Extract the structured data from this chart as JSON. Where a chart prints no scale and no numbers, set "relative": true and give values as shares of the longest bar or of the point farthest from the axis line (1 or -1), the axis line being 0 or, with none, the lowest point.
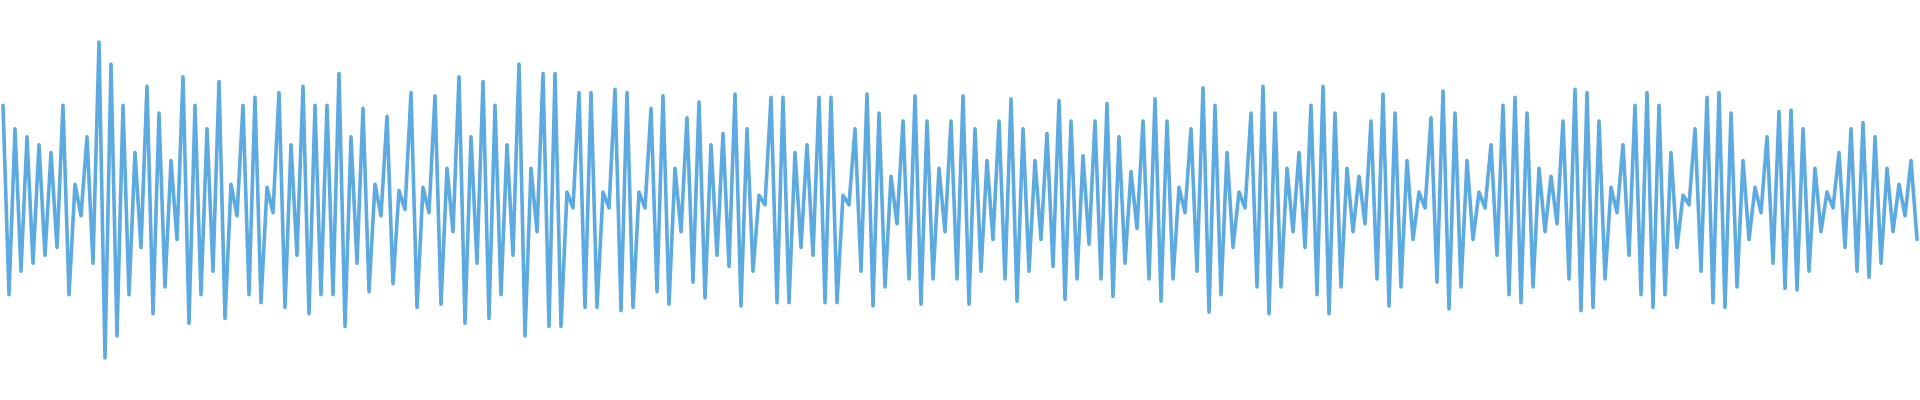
{
  "chart_data": {
    "type": "line",
    "relative": true,
    "categories": [
      null,
      null,
      null,
      null,
      null,
      null,
      null,
      null,
      null,
      null,
      null,
      null,
      null,
      null,
      null,
      null,
      null,
      null,
      null,
      null,
      null,
      null,
      null,
      null,
      null,
      null,
      null,
      null,
      null,
      null,
      null,
      null,
      null,
      null,
      null,
      null,
      null,
      null,
      null,
      null,
      null,
      null,
      null,
      null,
      null,
      null,
      null,
      null,
      null,
      null,
      null,
      null,
      null,
      null,
      null,
      null,
      null,
      null,
      null,
      null,
      null,
      null,
      null,
      null,
      null,
      null,
      null,
      null,
      null,
      null,
      null,
      null,
      null,
      null,
      null,
      null,
      null,
      null,
      null,
      null,
      null,
      null,
      null,
      null,
      null,
      null,
      null,
      null,
      null,
      null,
      null,
      null,
      null,
      null,
      null,
      null,
      null,
      null,
      null,
      null,
      null,
      null,
      null,
      null,
      null,
      null,
      null,
      null,
      null,
      null,
      null,
      null,
      null,
      null,
      null,
      null,
      null,
      null,
      null,
      null,
      null,
      null,
      null,
      null,
      null,
      null,
      null,
      null,
      null,
      null,
      null,
      null,
      null,
      null,
      null,
      null,
      null,
      null,
      null,
      null,
      null,
      null,
      null,
      null,
      null,
      null,
      null,
      null,
      null,
      null,
      null,
      null,
      null,
      null,
      null,
      null,
      null,
      null,
      null,
      null,
      null,
      null,
      null,
      null,
      null,
      null,
      null,
      null,
      null,
      null,
      null,
      null,
      null,
      null,
      null,
      null,
      null,
      null,
      null,
      null,
      null,
      null,
      null,
      null,
      null,
      null,
      null,
      null,
      null,
      null,
      null,
      null,
      null,
      null,
      null,
      null,
      null,
      null,
      null,
      null,
      null,
      null,
      null,
      null,
      null,
      null,
      null,
      null,
      null,
      null,
      null,
      null,
      null,
      null,
      null,
      null,
      null,
      null,
      null,
      null,
      null,
      null,
      null,
      null,
      null,
      null,
      null,
      null,
      null,
      null,
      null,
      null,
      null,
      null,
      null,
      null,
      null,
      null,
      null,
      null,
      null,
      null,
      null,
      null,
      null,
      null,
      null,
      null,
      null,
      null,
      null,
      null,
      null,
      null,
      null,
      null,
      null,
      null,
      null,
      null,
      null,
      null,
      null,
      null,
      null,
      null,
      null,
      null,
      null,
      null,
      null,
      null,
      null,
      null,
      null,
      null,
      null,
      null,
      null,
      null,
      null,
      null,
      null,
      null,
      null,
      null,
      null,
      null,
      null,
      null,
      null,
      null,
      null,
      null,
      null,
      null,
      null,
      null,
      null,
      null,
      null,
      null,
      null,
      null,
      null,
      null,
      null,
      null,
      null,
      null,
      null,
      null,
      null,
      null,
      null,
      null,
      null,
      null,
      null,
      null
    ],
    "series": [
      {
        "color": "#5daae0",
        "values": [
          0.8,
          0.2,
          0.725,
          0.275,
          0.7,
          0.3,
          0.675,
          0.325,
          0.65,
          0.35,
          0.8,
          0.2,
          0.55,
          0.45,
          0.7,
          0.3,
          1,
          0,
          0.93,
          0.07,
          0.8,
          0.2,
          0.65,
          0.35,
          0.86,
          0.14,
          0.775,
          0.225,
          0.625,
          0.375,
          0.89,
          0.11,
          0.8,
          0.2,
          0.725,
          0.275,
          0.875,
          0.125,
          0.55,
          0.45,
          0.8,
          0.2,
          0.825,
          0.175,
          0.54,
          0.46,
          0.84,
          0.16,
          0.675,
          0.325,
          0.86,
          0.14,
          0.8,
          0.2,
          0.8,
          0.2,
          0.9,
          0.1,
          0.7,
          0.3,
          0.79,
          0.21,
          0.55,
          0.45,
          0.765,
          0.235,
          0.53,
          0.47,
          0.84,
          0.16,
          0.54,
          0.46,
          0.83,
          0.17,
          0.6,
          0.4,
          0.89,
          0.11,
          0.7,
          0.3,
          0.875,
          0.125,
          0.8,
          0.2,
          0.675,
          0.325,
          0.93,
          0.07,
          0.6,
          0.4,
          0.9,
          0.1,
          0.9,
          0.1,
          0.525,
          0.475,
          0.84,
          0.16,
          0.84,
          0.16,
          0.525,
          0.475,
          0.85,
          0.15,
          0.84,
          0.16,
          0.525,
          0.475,
          0.79,
          0.21,
          0.83,
          0.17,
          0.6,
          0.4,
          0.76,
          0.24,
          0.81,
          0.19,
          0.675,
          0.325,
          0.71,
          0.29,
          0.835,
          0.165,
          0.725,
          0.275,
          0.515,
          0.485,
          0.825,
          0.175,
          0.825,
          0.175,
          0.65,
          0.35,
          0.675,
          0.325,
          0.825,
          0.175,
          0.825,
          0.175,
          0.515,
          0.485,
          0.725,
          0.275,
          0.835,
          0.165,
          0.775,
          0.225,
          0.575,
          0.425,
          0.75,
          0.25,
          0.83,
          0.17,
          0.75,
          0.25,
          0.6,
          0.4,
          0.75,
          0.25,
          0.83,
          0.17,
          0.725,
          0.275,
          0.625,
          0.375,
          0.75,
          0.25,
          0.82,
          0.18,
          0.725,
          0.275,
          0.625,
          0.375,
          0.71,
          0.29,
          0.815,
          0.185,
          0.75,
          0.25,
          0.64,
          0.36,
          0.75,
          0.25,
          0.805,
          0.195,
          0.7,
          0.3,
          0.59,
          0.41,
          0.75,
          0.25,
          0.82,
          0.18,
          0.75,
          0.25,
          0.54,
          0.46,
          0.725,
          0.275,
          0.855,
          0.145,
          0.8,
          0.2,
          0.65,
          0.35,
          0.525,
          0.475,
          0.775,
          0.225,
          0.86,
          0.14,
          0.775,
          0.225,
          0.6,
          0.4,
          0.65,
          0.35,
          0.8,
          0.2,
          0.86,
          0.14,
          0.775,
          0.225,
          0.6,
          0.4,
          0.575,
          0.425,
          0.75,
          0.25,
          0.835,
          0.165,
          0.775,
          0.225,
          0.625,
          0.375,
          0.525,
          0.475,
          0.76,
          0.24,
          0.845,
          0.155,
          0.775,
          0.225,
          0.625,
          0.375,
          0.525,
          0.475,
          0.675,
          0.325,
          0.8,
          0.2,
          0.825,
          0.175,
          0.775,
          0.225,
          0.6,
          0.4,
          0.575,
          0.425,
          0.75,
          0.25,
          0.85,
          0.15,
          0.84,
          0.16,
          0.75,
          0.25,
          0.54,
          0.46,
          0.675,
          0.325,
          0.8,
          0.2,
          0.84,
          0.16,
          0.8,
          0.2,
          0.65,
          0.35,
          0.515,
          0.485,
          0.725,
          0.275,
          0.825,
          0.175,
          0.84,
          0.16,
          0.775,
          0.225,
          0.625,
          0.375,
          0.54,
          0.46,
          0.7,
          0.3,
          0.78,
          0.22,
          0.785,
          0.215,
          0.725,
          0.275,
          0.6,
          0.4,
          0.525,
          0.475,
          0.65,
          0.35,
          0.725,
          0.275,
          0.745,
          0.255,
          0.7,
          0.3,
          0.6,
          0.4,
          0.55,
          0.45,
          0.625,
          0.375
        ]
      }
    ]
  }
}
